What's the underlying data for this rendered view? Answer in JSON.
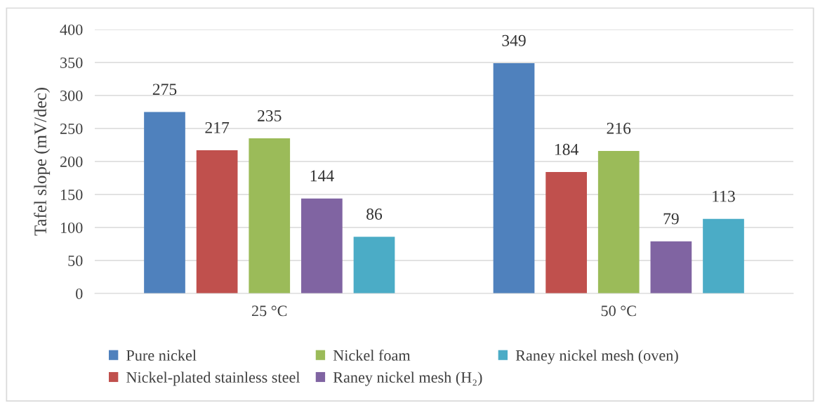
{
  "chart_data": {
    "type": "bar",
    "ylabel": "Tafel slope (mV/dec)",
    "categories": [
      "25 °C",
      "50 °C"
    ],
    "series": [
      {
        "name": "Pure nickel",
        "color": "#4f81bd",
        "values": [
          275,
          349
        ]
      },
      {
        "name": "Nickel-plated stainless steel",
        "color": "#c0504d",
        "values": [
          217,
          184
        ]
      },
      {
        "name": "Nickel foam",
        "color": "#9bbb59",
        "values": [
          235,
          216
        ]
      },
      {
        "name": "Raney nickel mesh (H₂)",
        "color": "#8064a2",
        "values": [
          144,
          79
        ]
      },
      {
        "name": "Raney nickel mesh (oven)",
        "color": "#4bacc6",
        "values": [
          86,
          113
        ]
      }
    ],
    "ylim": [
      0,
      400
    ],
    "yticks": [
      0,
      50,
      100,
      150,
      200,
      250,
      300,
      350,
      400
    ],
    "grid": "y",
    "data_labels": true,
    "legend": "bottom"
  }
}
